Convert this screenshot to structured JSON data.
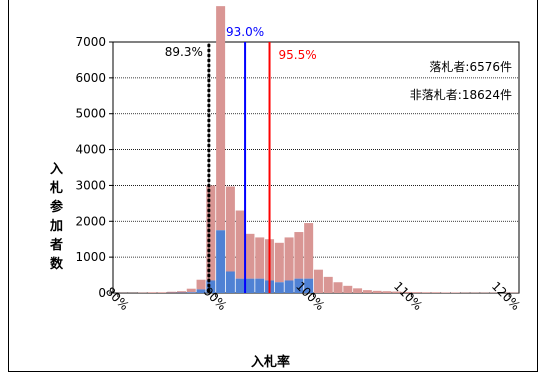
{
  "chart_data": {
    "type": "bar",
    "title": "",
    "xlabel": "入札率",
    "ylabel": "入札参加者数",
    "ylim": [
      0,
      7000
    ],
    "yticks": [
      0,
      1000,
      2000,
      3000,
      4000,
      5000,
      6000,
      7000
    ],
    "xlim": [
      79.5,
      121.0
    ],
    "xticks": [
      "80%",
      "90%",
      "100%",
      "110%",
      "120%"
    ],
    "xtick_values": [
      80,
      90,
      100,
      110,
      120
    ],
    "bin_width": 1,
    "categories": [
      80,
      81,
      82,
      83,
      84,
      85,
      86,
      87,
      88,
      89,
      90,
      91,
      92,
      93,
      94,
      95,
      96,
      97,
      98,
      99,
      100,
      101,
      102,
      103,
      104,
      105,
      106,
      107,
      108,
      109,
      110,
      111,
      112,
      113,
      114,
      115,
      116,
      117,
      118,
      119,
      120
    ],
    "series": [
      {
        "name": "非落札者",
        "color": "#d99694",
        "values": [
          5,
          5,
          10,
          20,
          20,
          30,
          40,
          100,
          270,
          2650,
          6250,
          2370,
          1900,
          1250,
          1150,
          1150,
          1100,
          1200,
          1300,
          1550,
          650,
          450,
          300,
          200,
          130,
          80,
          60,
          50,
          40,
          30,
          25,
          20,
          20,
          15,
          15,
          10,
          10,
          10,
          10,
          10,
          10
        ]
      },
      {
        "name": "落札者",
        "color": "#4f81d4",
        "values": [
          0,
          0,
          0,
          0,
          0,
          5,
          10,
          20,
          100,
          350,
          1750,
          600,
          400,
          400,
          400,
          350,
          300,
          350,
          400,
          400,
          0,
          0,
          0,
          0,
          0,
          0,
          0,
          0,
          0,
          0,
          0,
          0,
          0,
          0,
          0,
          0,
          0,
          0,
          0,
          0,
          0
        ]
      }
    ],
    "legend_text": [
      "落札者:6576件",
      "非落札者:18624件"
    ],
    "reference_lines": [
      {
        "value": 89.3,
        "label": "89.3%",
        "color": "#000000",
        "style": "dotted"
      },
      {
        "value": 93.0,
        "label": "93.0%",
        "color": "#0000ff",
        "style": "solid"
      },
      {
        "value": 95.5,
        "label": "95.5%",
        "color": "#ff0000",
        "style": "solid"
      }
    ],
    "grid": true
  }
}
